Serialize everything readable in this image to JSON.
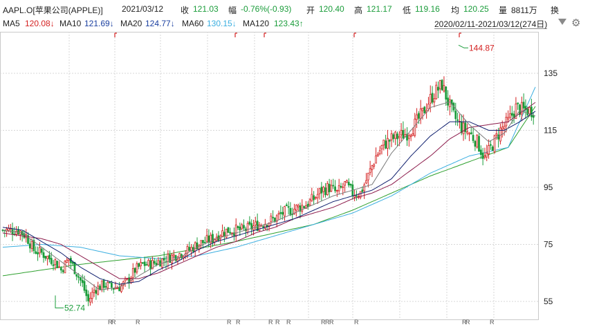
{
  "header": {
    "symbol": "AAPL.O[苹果公司(APPLE)]",
    "date": "2021/03/12",
    "close_label": "收",
    "close_value": "121.03",
    "change_label": "幅",
    "change_value": "-0.76%(-0.93)",
    "open_label": "开",
    "open_value": "120.40",
    "high_label": "高",
    "high_value": "121.17",
    "low_label": "低",
    "low_value": "119.16",
    "avg_label": "均",
    "avg_value": "120.25",
    "vol_label": "量",
    "vol_value": "8811万",
    "turnover_label": "换"
  },
  "ma_row": {
    "items": [
      {
        "label": "MA5",
        "value": "120.08↓",
        "dir": "down"
      },
      {
        "label": "MA10",
        "value": "121.69↓",
        "dir": "down"
      },
      {
        "label": "MA20",
        "value": "124.77↓",
        "dir": "down"
      },
      {
        "label": "MA60",
        "value": "130.15↓",
        "dir": "down"
      },
      {
        "label": "MA120",
        "value": "123.43↑",
        "dir": "up"
      }
    ],
    "range": "2020/02/11-2021/03/12(274日)"
  },
  "colors": {
    "up": "#d42020",
    "down": "#1a9c3a",
    "ma5": "#7a7a7a",
    "ma10": "#0f1f6e",
    "ma20": "#8b1a4a",
    "ma60": "#3aaee0",
    "ma120": "#2ea02e"
  },
  "chart_data": {
    "type": "candlestick",
    "y_ticks": [
      55,
      75,
      95,
      115,
      135
    ],
    "ylim": [
      50,
      147
    ],
    "sessions": 274,
    "annotations": {
      "max": "144.87",
      "min": "52.74"
    },
    "series": {
      "close": [
        [
          0,
          80
        ],
        [
          4,
          80
        ],
        [
          8,
          80
        ],
        [
          12,
          78
        ],
        [
          16,
          73
        ],
        [
          20,
          72
        ],
        [
          24,
          70
        ],
        [
          27,
          69
        ],
        [
          30,
          66
        ],
        [
          34,
          70
        ],
        [
          38,
          65
        ],
        [
          41,
          61
        ],
        [
          44,
          55
        ],
        [
          47,
          59
        ],
        [
          52,
          61
        ],
        [
          56,
          60
        ],
        [
          60,
          60
        ],
        [
          64,
          62
        ],
        [
          68,
          66
        ],
        [
          72,
          68
        ],
        [
          76,
          68
        ],
        [
          80,
          69
        ],
        [
          84,
          70
        ],
        [
          88,
          71
        ],
        [
          92,
          72
        ],
        [
          96,
          73
        ],
        [
          100,
          75
        ],
        [
          104,
          76
        ],
        [
          108,
          77
        ],
        [
          112,
          79
        ],
        [
          116,
          80
        ],
        [
          120,
          80
        ],
        [
          124,
          80
        ],
        [
          128,
          81
        ],
        [
          132,
          82
        ],
        [
          136,
          83
        ],
        [
          140,
          84
        ],
        [
          144,
          86
        ],
        [
          148,
          87
        ],
        [
          152,
          88
        ],
        [
          156,
          89
        ],
        [
          160,
          91
        ],
        [
          164,
          94
        ],
        [
          168,
          95
        ],
        [
          172,
          93
        ],
        [
          176,
          96
        ],
        [
          180,
          93
        ],
        [
          184,
          93
        ],
        [
          188,
          99
        ],
        [
          192,
          106
        ],
        [
          196,
          110
        ],
        [
          200,
          112
        ],
        [
          204,
          113
        ],
        [
          208,
          114
        ],
        [
          212,
          117
        ],
        [
          216,
          121
        ],
        [
          219,
          125
        ],
        [
          222,
          128
        ],
        [
          226,
          131
        ],
        [
          229,
          125
        ],
        [
          232,
          120
        ],
        [
          236,
          116
        ],
        [
          240,
          114
        ],
        [
          244,
          111
        ],
        [
          248,
          105
        ],
        [
          252,
          110
        ],
        [
          256,
          115
        ],
        [
          260,
          118
        ],
        [
          264,
          123
        ],
        [
          268,
          122
        ]
      ],
      "ma5": [
        [
          0,
          80
        ],
        [
          10,
          79
        ],
        [
          20,
          74
        ],
        [
          30,
          69
        ],
        [
          40,
          64
        ],
        [
          50,
          59
        ],
        [
          60,
          60
        ],
        [
          70,
          64
        ],
        [
          80,
          68
        ],
        [
          90,
          70
        ],
        [
          100,
          74
        ],
        [
          110,
          77
        ],
        [
          120,
          79
        ],
        [
          130,
          81
        ],
        [
          140,
          83
        ],
        [
          150,
          86
        ],
        [
          160,
          89
        ],
        [
          170,
          92
        ],
        [
          180,
          94
        ],
        [
          190,
          96
        ],
        [
          200,
          107
        ],
        [
          210,
          115
        ],
        [
          220,
          123
        ],
        [
          230,
          125
        ],
        [
          240,
          117
        ],
        [
          250,
          111
        ],
        [
          258,
          114
        ],
        [
          266,
          122
        ],
        [
          274,
          120
        ]
      ],
      "ma10": [
        [
          0,
          81
        ],
        [
          10,
          80
        ],
        [
          20,
          76
        ],
        [
          30,
          72
        ],
        [
          40,
          67
        ],
        [
          50,
          63
        ],
        [
          60,
          61
        ],
        [
          70,
          62
        ],
        [
          80,
          66
        ],
        [
          90,
          69
        ],
        [
          100,
          73
        ],
        [
          110,
          76
        ],
        [
          120,
          78
        ],
        [
          130,
          80
        ],
        [
          140,
          82
        ],
        [
          150,
          84
        ],
        [
          160,
          87
        ],
        [
          170,
          90
        ],
        [
          180,
          92
        ],
        [
          190,
          94
        ],
        [
          200,
          98
        ],
        [
          210,
          106
        ],
        [
          220,
          113
        ],
        [
          230,
          118
        ],
        [
          240,
          118
        ],
        [
          250,
          115
        ],
        [
          258,
          115
        ],
        [
          266,
          118
        ],
        [
          274,
          121.7
        ]
      ],
      "ma20": [
        [
          0,
          79
        ],
        [
          10,
          78
        ],
        [
          20,
          77
        ],
        [
          30,
          75
        ],
        [
          40,
          71
        ],
        [
          50,
          67
        ],
        [
          60,
          63
        ],
        [
          70,
          63
        ],
        [
          80,
          65
        ],
        [
          90,
          68
        ],
        [
          100,
          71
        ],
        [
          110,
          74
        ],
        [
          120,
          76
        ],
        [
          130,
          79
        ],
        [
          140,
          81
        ],
        [
          150,
          84
        ],
        [
          160,
          86
        ],
        [
          170,
          88
        ],
        [
          180,
          91
        ],
        [
          190,
          93
        ],
        [
          200,
          96
        ],
        [
          210,
          101
        ],
        [
          220,
          106
        ],
        [
          230,
          112
        ],
        [
          240,
          116
        ],
        [
          250,
          117
        ],
        [
          260,
          118
        ],
        [
          274,
          124.8
        ]
      ],
      "ma60": [
        [
          0,
          74
        ],
        [
          20,
          75
        ],
        [
          40,
          74
        ],
        [
          60,
          71
        ],
        [
          80,
          70
        ],
        [
          100,
          71
        ],
        [
          120,
          74
        ],
        [
          140,
          78
        ],
        [
          160,
          82
        ],
        [
          180,
          86
        ],
        [
          200,
          92
        ],
        [
          220,
          100
        ],
        [
          240,
          106
        ],
        [
          260,
          109
        ],
        [
          274,
          130.2
        ]
      ],
      "ma120": [
        [
          0,
          64
        ],
        [
          40,
          68
        ],
        [
          80,
          71
        ],
        [
          120,
          76
        ],
        [
          160,
          82
        ],
        [
          180,
          87
        ],
        [
          200,
          93
        ],
        [
          220,
          99
        ],
        [
          240,
          104
        ],
        [
          260,
          109
        ],
        [
          274,
          123.4
        ]
      ]
    }
  }
}
